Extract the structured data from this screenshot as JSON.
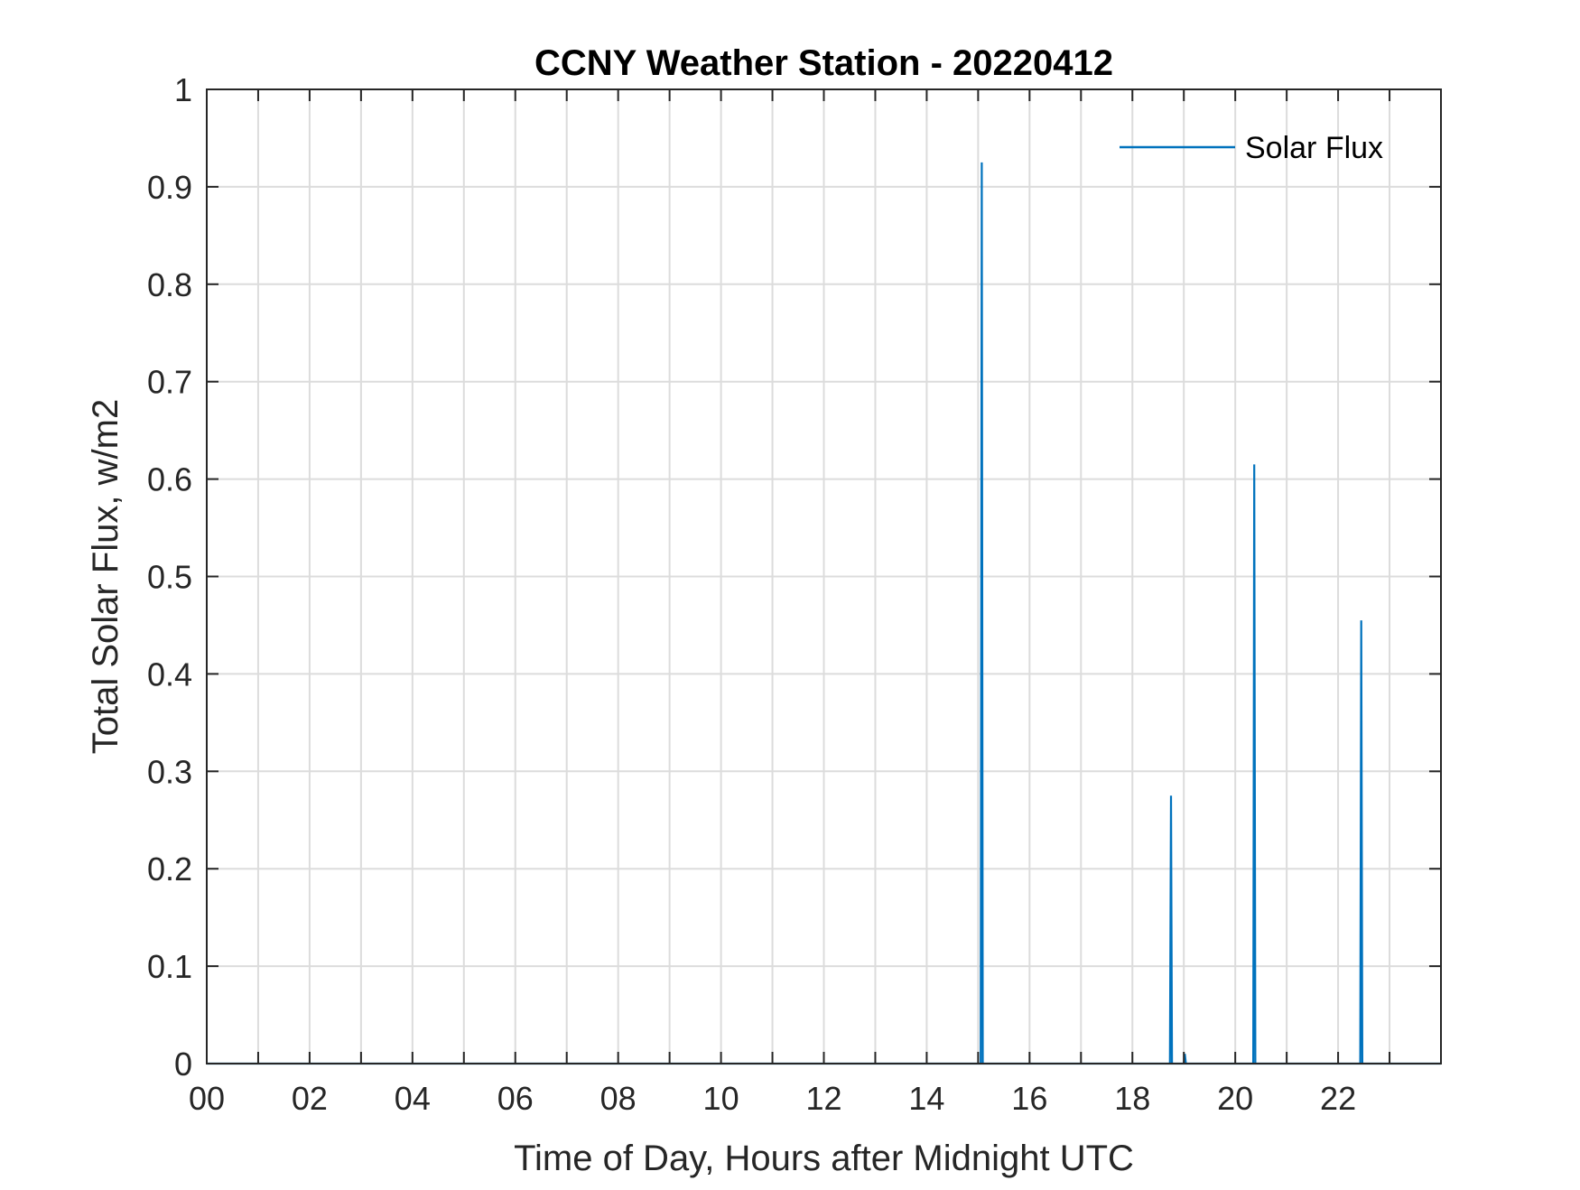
{
  "chart_data": {
    "type": "line",
    "title": "CCNY Weather Station - 20220412",
    "xlabel": "Time of Day, Hours after Midnight UTC",
    "ylabel": "Total Solar Flux, w/m2",
    "xlim": [
      0,
      24
    ],
    "ylim": [
      0,
      1
    ],
    "x_ticks": [
      0,
      2,
      4,
      6,
      8,
      10,
      12,
      14,
      16,
      18,
      20,
      22
    ],
    "x_tick_labels": [
      "00",
      "02",
      "04",
      "06",
      "08",
      "10",
      "12",
      "14",
      "16",
      "18",
      "20",
      "22"
    ],
    "x_minor_ticks": [
      1,
      3,
      5,
      7,
      9,
      11,
      13,
      15,
      17,
      19,
      21,
      23
    ],
    "y_ticks": [
      0,
      0.1,
      0.2,
      0.3,
      0.4,
      0.5,
      0.6,
      0.7,
      0.8,
      0.9,
      1
    ],
    "y_tick_labels": [
      "0",
      "0.1",
      "0.2",
      "0.3",
      "0.4",
      "0.5",
      "0.6",
      "0.7",
      "0.8",
      "0.9",
      "1"
    ],
    "grid": true,
    "legend_position": "top-right",
    "series": [
      {
        "name": "Solar Flux",
        "color": "#0072BD",
        "points": [
          [
            0,
            0
          ],
          [
            15.05,
            0
          ],
          [
            15.07,
            0.925
          ],
          [
            15.09,
            0
          ],
          [
            18.73,
            0
          ],
          [
            18.75,
            0.275
          ],
          [
            18.77,
            0
          ],
          [
            19.0,
            0
          ],
          [
            19.02,
            0.01
          ],
          [
            19.04,
            0
          ],
          [
            20.35,
            0
          ],
          [
            20.37,
            0.615
          ],
          [
            20.39,
            0
          ],
          [
            22.43,
            0
          ],
          [
            22.45,
            0.455
          ],
          [
            22.47,
            0
          ],
          [
            24,
            0
          ]
        ]
      }
    ]
  }
}
